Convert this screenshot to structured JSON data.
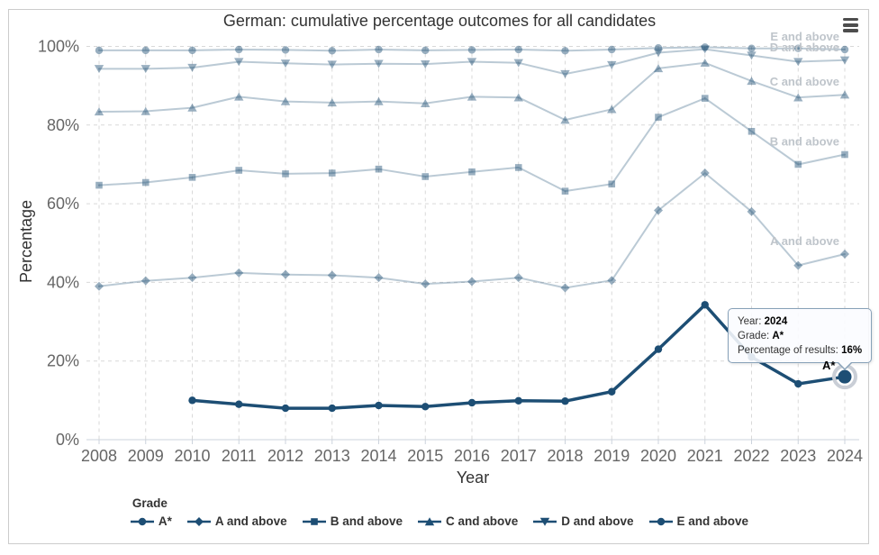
{
  "page": {
    "menu_icon": "hamburger-menu"
  },
  "chart_data": {
    "type": "line",
    "title": "German: cumulative percentage outcomes for all candidates",
    "xlabel": "Year",
    "ylabel": "Percentage",
    "x": [
      2008,
      2009,
      2010,
      2011,
      2012,
      2013,
      2014,
      2015,
      2016,
      2017,
      2018,
      2019,
      2020,
      2021,
      2022,
      2023,
      2024
    ],
    "ylim": [
      0,
      100
    ],
    "yticks": [
      0,
      20,
      40,
      60,
      80,
      100
    ],
    "ytick_suffix": "%",
    "grid": "dashed",
    "legend_title": "Grade",
    "series": [
      {
        "name": "A*",
        "marker": "circle",
        "emphasized": true,
        "values": [
          null,
          null,
          10,
          9,
          8,
          8,
          8.7,
          8.4,
          9.4,
          9.9,
          9.8,
          12.2,
          23,
          34.3,
          21,
          14.2,
          16
        ]
      },
      {
        "name": "A and above",
        "marker": "diamond",
        "dimmed": true,
        "values": [
          39,
          40.4,
          41.2,
          42.4,
          42,
          41.8,
          41.2,
          39.6,
          40.2,
          41.2,
          38.6,
          40.5,
          58.3,
          67.8,
          58,
          44.3,
          47.2
        ]
      },
      {
        "name": "B and above",
        "marker": "square",
        "dimmed": true,
        "values": [
          64.7,
          65.4,
          66.7,
          68.5,
          67.6,
          67.8,
          68.8,
          66.9,
          68.1,
          69.2,
          63.2,
          65,
          82,
          86.8,
          78.4,
          70,
          72.5
        ]
      },
      {
        "name": "C and above",
        "marker": "triangle",
        "dimmed": true,
        "values": [
          83.4,
          83.5,
          84.4,
          87.2,
          86,
          85.7,
          86,
          85.5,
          87.2,
          87,
          81.3,
          84,
          94.4,
          95.8,
          91.2,
          87,
          87.7
        ]
      },
      {
        "name": "D and above",
        "marker": "triangle-down",
        "dimmed": true,
        "values": [
          94.3,
          94.3,
          94.6,
          96.1,
          95.7,
          95.4,
          95.6,
          95.5,
          96.1,
          95.8,
          93,
          95.3,
          98.4,
          99.3,
          97.7,
          96.1,
          96.5
        ]
      },
      {
        "name": "E and above",
        "marker": "circle",
        "dimmed": true,
        "values": [
          99,
          99,
          99,
          99.2,
          99.1,
          98.9,
          99.2,
          99,
          99.1,
          99.2,
          98.9,
          99.2,
          99.6,
          99.8,
          99.5,
          99.5,
          99.2
        ]
      }
    ],
    "hover_point": {
      "series": "A*",
      "x": 2024,
      "value": 16,
      "label": "A*"
    },
    "legend_position": "bottom"
  },
  "tooltip": {
    "rows": [
      {
        "label": "Year:",
        "value": "2024"
      },
      {
        "label": "Grade:",
        "value": "A*"
      },
      {
        "label": "Percentage of results:",
        "value": "16%"
      }
    ]
  },
  "colors": {
    "accent": "#1d4e74",
    "dimmed_line": "rgba(29,78,116,0.30)",
    "dimmed_marker": "rgba(29,78,116,0.45)",
    "grid": "#d9d9d9",
    "axis_line": "#ccd3dc",
    "tick_label": "#666666",
    "title_text": "#333333",
    "inline_label": "#bfc5cb",
    "halo": "#c9ced6",
    "tooltip_border": "#87a1b8"
  }
}
